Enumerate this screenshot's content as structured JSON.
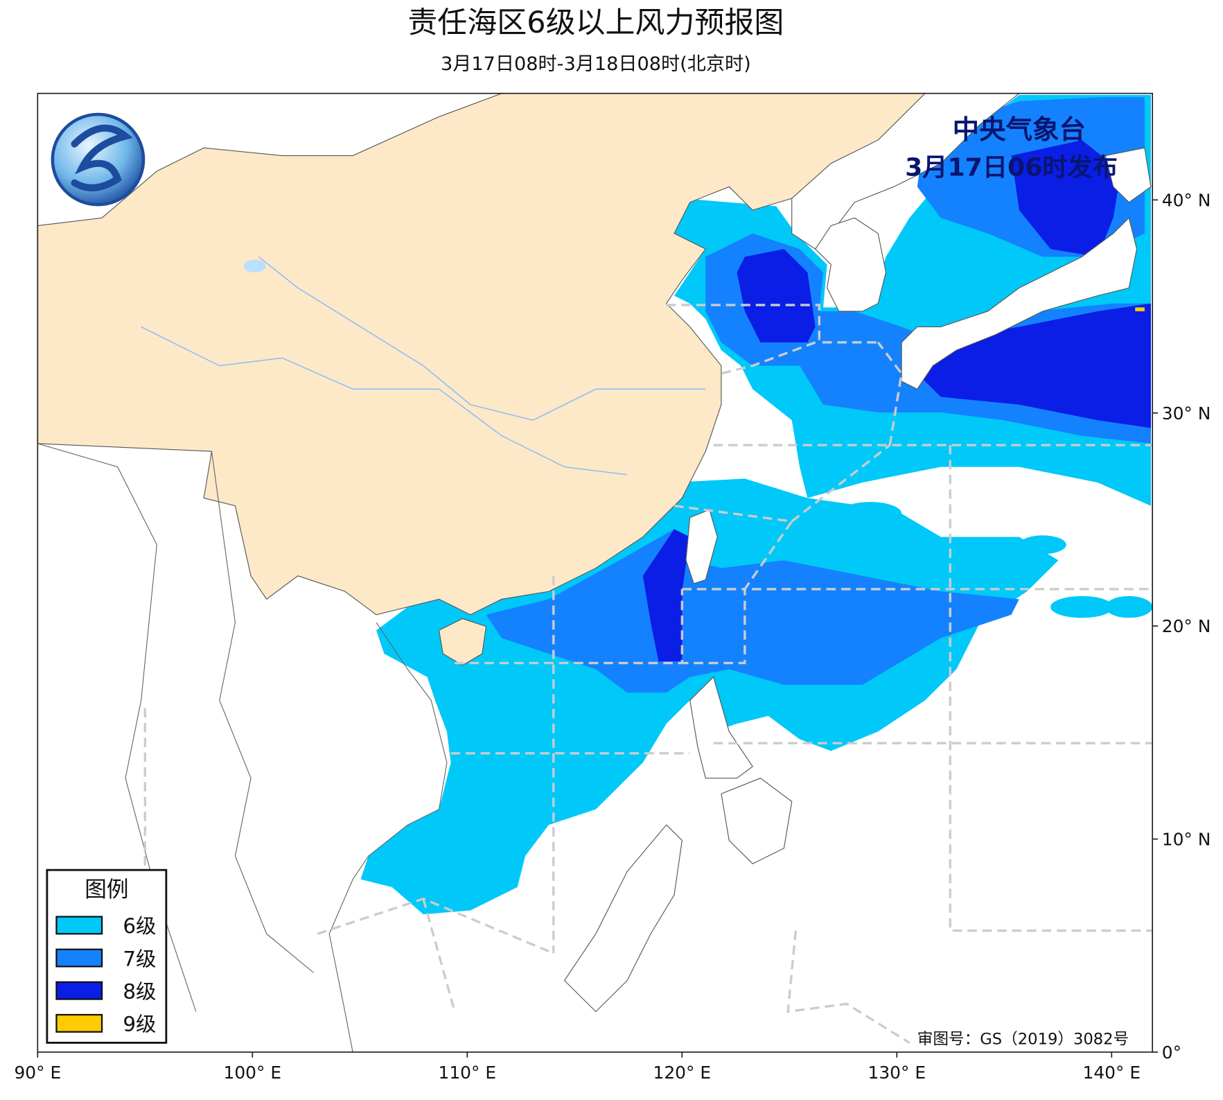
{
  "title": "责任海区6级以上风力预报图",
  "subtitle": "3月17日08时-3月18日08时(北京时)",
  "publisher": [
    "中央气象台",
    "3月17日06时发布"
  ],
  "map": {
    "xlim": [
      90,
      141.9
    ],
    "ylim": [
      0,
      45
    ],
    "xticks": [
      {
        "value": 90,
        "label": "90° E"
      },
      {
        "value": 100,
        "label": "100° E"
      },
      {
        "value": 110,
        "label": "110° E"
      },
      {
        "value": 120,
        "label": "120° E"
      },
      {
        "value": 130,
        "label": "130° E"
      },
      {
        "value": 140,
        "label": "140° E"
      }
    ],
    "yticks": [
      {
        "value": 0,
        "label": "0°"
      },
      {
        "value": 10,
        "label": "10° N"
      },
      {
        "value": 20,
        "label": "20° N"
      },
      {
        "value": 30,
        "label": "30° N"
      },
      {
        "value": 40,
        "label": "40° N"
      }
    ]
  },
  "legend": {
    "title": "图例",
    "items": [
      {
        "label": "6级",
        "color": "#00c8f8"
      },
      {
        "label": "7级",
        "color": "#1482ff"
      },
      {
        "label": "8级",
        "color": "#0a1ee6"
      },
      {
        "label": "9级",
        "color": "#ffcc00"
      }
    ]
  },
  "approval": "审图号：GS（2019）3082号"
}
